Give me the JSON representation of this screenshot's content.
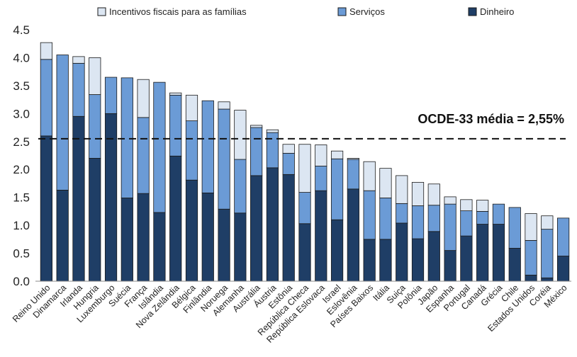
{
  "chart_data": {
    "type": "bar",
    "stacked": true,
    "categories": [
      "Reino Unido",
      "Dinamarca",
      "Irlanda",
      "Hungria",
      "Luxemburgo",
      "Suécia",
      "França",
      "Islândia",
      "Nova Zelândia",
      "Bélgica",
      "Finlândia",
      "Noruega",
      "Alemanha",
      "Austrália",
      "Áustria",
      "Estônia",
      "República Checa",
      "República Eslovaca",
      "Israel",
      "Eslovênia",
      "Países Baixos",
      "Itália",
      "Suiça",
      "Polônia",
      "Japão",
      "Espanha",
      "Portugal",
      "Canadá",
      "Grécia",
      "Chile",
      "Estados Unidos",
      "Coréia",
      "México"
    ],
    "series": [
      {
        "name": "Dinheiro",
        "color": "#1f3e66",
        "values": [
          2.6,
          1.63,
          2.95,
          2.2,
          3.0,
          1.49,
          1.57,
          1.23,
          2.24,
          1.81,
          1.58,
          1.29,
          1.22,
          1.89,
          2.03,
          1.91,
          1.03,
          1.62,
          1.1,
          1.65,
          0.75,
          0.75,
          1.04,
          0.76,
          0.89,
          0.55,
          0.81,
          1.02,
          1.02,
          0.59,
          0.11,
          0.06,
          0.45
        ]
      },
      {
        "name": "Serviços",
        "color": "#6b9bd6",
        "values": [
          1.37,
          2.42,
          0.95,
          1.14,
          0.65,
          2.15,
          1.36,
          2.33,
          1.09,
          1.06,
          1.65,
          1.79,
          0.96,
          0.86,
          0.63,
          0.38,
          0.56,
          0.44,
          1.09,
          0.53,
          0.87,
          0.74,
          0.35,
          0.59,
          0.47,
          0.83,
          0.45,
          0.23,
          0.36,
          0.73,
          0.62,
          0.87,
          0.68
        ]
      },
      {
        "name": "Incentivos fiscais para as famílias",
        "color": "#dce6f2",
        "values": [
          0.3,
          0.0,
          0.12,
          0.66,
          0.0,
          0.0,
          0.68,
          0.0,
          0.04,
          0.46,
          0.0,
          0.13,
          0.88,
          0.04,
          0.05,
          0.16,
          0.86,
          0.38,
          0.14,
          0.02,
          0.52,
          0.53,
          0.5,
          0.42,
          0.38,
          0.13,
          0.2,
          0.2,
          0.0,
          0.0,
          0.48,
          0.24,
          0.0
        ]
      }
    ],
    "ylim": [
      0,
      4.5
    ],
    "yticks": [
      "0.0",
      "0.5",
      "1.0",
      "1.5",
      "2.0",
      "2.5",
      "3.0",
      "3.5",
      "4.0",
      "4.5"
    ],
    "reference_line": {
      "value": 2.55,
      "label": "OCDE-33 média = 2,55%"
    },
    "legend_placement": "top",
    "grid": false
  }
}
